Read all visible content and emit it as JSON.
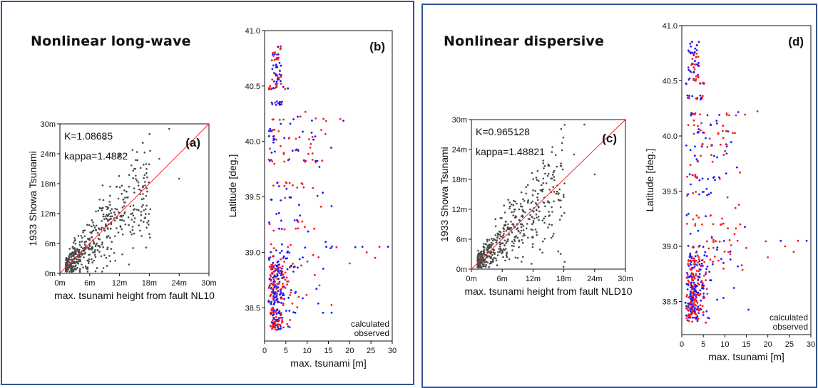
{
  "colors": {
    "frame": "#2f5496",
    "calculated": "#1a1aff",
    "observed": "#ff1a1a",
    "scatter": "#4a4a4a",
    "fit": "#e03030"
  },
  "left_title": "Nonlinear long-wave",
  "right_title": "Nonlinear dispersive",
  "chart_data": [
    {
      "type": "scatter",
      "panel_label": "(a)",
      "annotations": [
        "K=1.08685",
        "kappa=1.4882"
      ],
      "xlabel": "max. tsunami height from fault NL10",
      "ylabel": "1933 Showa Tsunami",
      "xlim": [
        0,
        30
      ],
      "ylim": [
        0,
        30
      ],
      "xticks": [
        "0m",
        "6m",
        "12m",
        "18m",
        "24m",
        "30m"
      ],
      "yticks": [
        "0m",
        "6m",
        "12m",
        "18m",
        "24m",
        "30m"
      ],
      "fit_line": [
        [
          0,
          0
        ],
        [
          30,
          30
        ]
      ],
      "seed": 11
    },
    {
      "type": "scatter",
      "panel_label": "(b)",
      "xlabel": "max. tsunami [m]",
      "ylabel": "Latitude [deg.]",
      "xlim": [
        0,
        30
      ],
      "ylim": [
        38.2,
        41.0
      ],
      "xticks": [
        "0",
        "5",
        "10",
        "15",
        "20",
        "25",
        "30"
      ],
      "yticks": [
        "38.5",
        "39.0",
        "39.5",
        "40.0",
        "40.5",
        "41.0"
      ],
      "series": [
        {
          "name": "calculated"
        },
        {
          "name": "observed"
        }
      ],
      "seed": 23
    },
    {
      "type": "scatter",
      "panel_label": "(c)",
      "annotations": [
        "K=0.965128",
        "kappa=1.48821"
      ],
      "xlabel": "max. tsunami height from fault NLD10",
      "ylabel": "1933 Showa Tsunami",
      "xlim": [
        0,
        30
      ],
      "ylim": [
        0,
        30
      ],
      "xticks": [
        "0m",
        "6m",
        "12m",
        "18m",
        "24m",
        "30m"
      ],
      "yticks": [
        "0m",
        "6m",
        "12m",
        "18m",
        "24m",
        "30m"
      ],
      "fit_line": [
        [
          0,
          0
        ],
        [
          30,
          30
        ]
      ],
      "seed": 37
    },
    {
      "type": "scatter",
      "panel_label": "(d)",
      "xlabel": "max. tsunami [m]",
      "ylabel": "Latitude [deg.]",
      "xlim": [
        0,
        30
      ],
      "ylim": [
        38.2,
        41.0
      ],
      "xticks": [
        "0",
        "5",
        "10",
        "15",
        "20",
        "25",
        "30"
      ],
      "yticks": [
        "38.5",
        "39.0",
        "39.5",
        "40.0",
        "40.5",
        "41.0"
      ],
      "series": [
        {
          "name": "calculated"
        },
        {
          "name": "observed"
        }
      ],
      "seed": 53
    }
  ]
}
